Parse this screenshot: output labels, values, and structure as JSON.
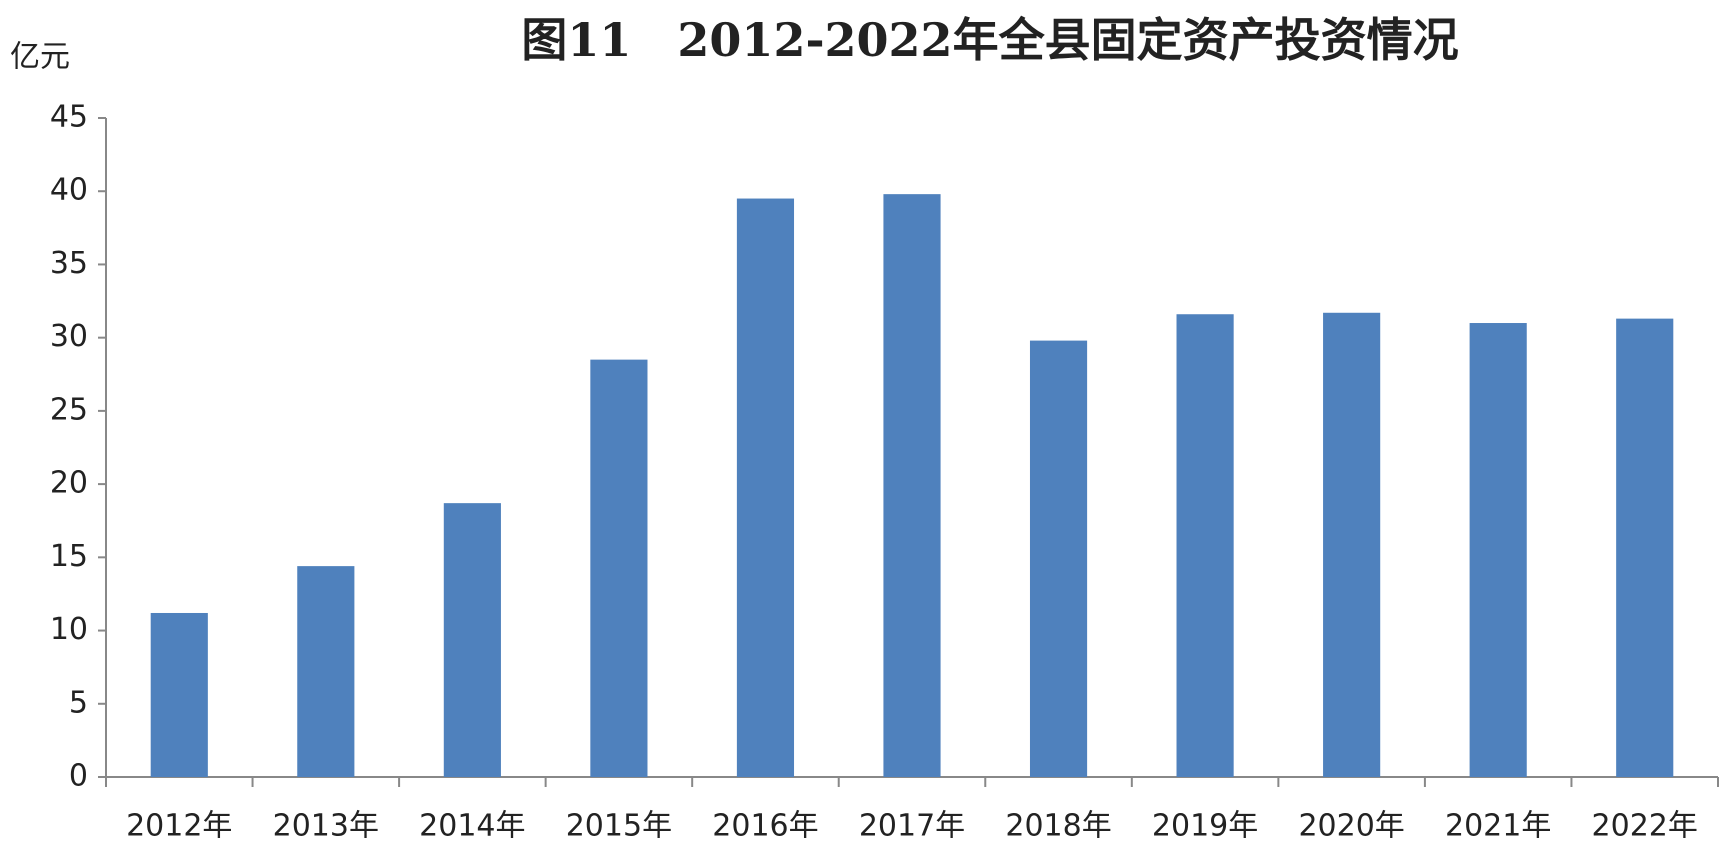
{
  "chart_data": {
    "type": "bar",
    "title": "图11　2012-2022年全县固定资产投资情况",
    "y_label": "亿元",
    "categories": [
      "2012年",
      "2013年",
      "2014年",
      "2015年",
      "2016年",
      "2017年",
      "2018年",
      "2019年",
      "2020年",
      "2021年",
      "2022年"
    ],
    "values": [
      11.2,
      14.4,
      18.7,
      28.5,
      39.5,
      39.8,
      29.8,
      31.6,
      31.7,
      31.0,
      31.3
    ],
    "color": "#4f81bd",
    "ylim": [
      0,
      45
    ],
    "yticks": [
      0,
      5,
      10,
      15,
      20,
      25,
      30,
      35,
      40,
      45
    ],
    "grid": false
  }
}
